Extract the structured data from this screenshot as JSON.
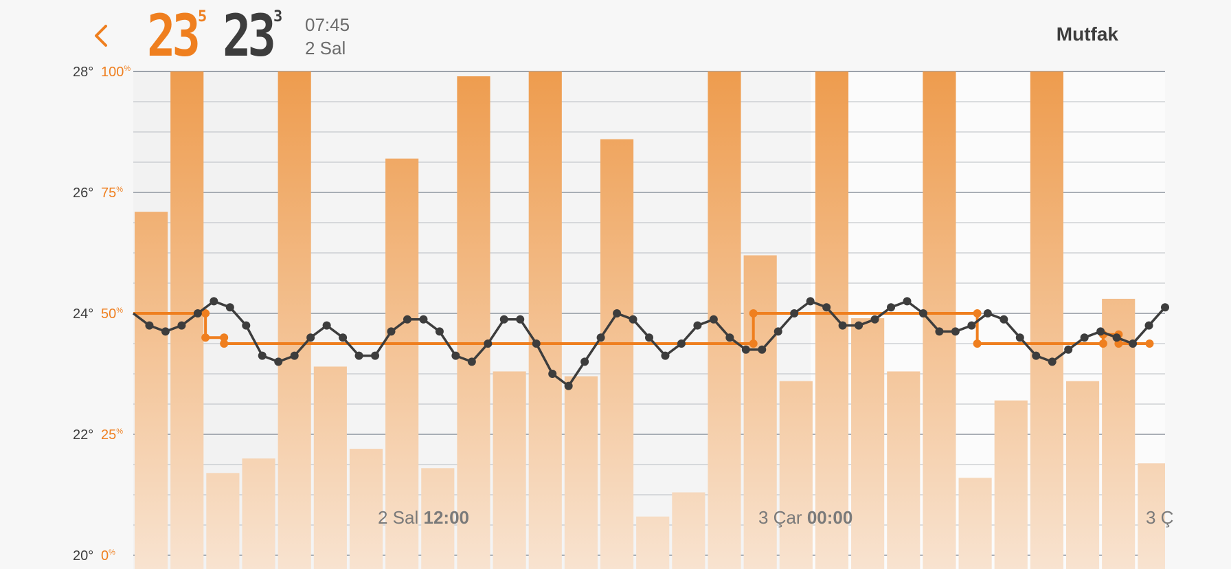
{
  "header": {
    "back_icon": "chevron-left-icon",
    "current_temp_int": "23",
    "current_temp_dec": "5",
    "target_temp_int": "23",
    "target_temp_dec": "3",
    "time": "07:45",
    "date": "2 Sal",
    "room_name": "Mutfak"
  },
  "colors": {
    "accent": "#ef7f1f",
    "dark": "#3d3d3d",
    "bar_top": "#ee9c4e",
    "bar_bottom": "#f8e3d0"
  },
  "chart_data": {
    "type": "bar+line",
    "temp_axis": {
      "ticks": [
        28,
        26,
        24,
        22,
        20
      ],
      "labels": [
        "28°",
        "26°",
        "24°",
        "22°",
        "20°"
      ],
      "ylim": [
        20,
        28
      ]
    },
    "humidity_axis": {
      "ticks": [
        100,
        75,
        50,
        25,
        0
      ],
      "labels": [
        "100",
        "75",
        "50",
        "25",
        "0"
      ],
      "unit": "%",
      "ylim": [
        0,
        100
      ]
    },
    "x_labels": [
      {
        "day": "2 Sal",
        "time": "12:00"
      },
      {
        "day": "3 Çar",
        "time": "00:00"
      },
      {
        "day": "3 Ç",
        "time": ""
      }
    ],
    "humidity_bars": [
      71,
      100,
      17,
      20,
      100,
      39,
      22,
      82,
      18,
      99,
      38,
      100,
      37,
      86,
      8,
      13,
      100,
      62,
      36,
      100,
      49,
      38,
      100,
      16,
      32,
      100,
      36,
      53,
      19
    ],
    "measured_temp": [
      24.0,
      23.8,
      23.7,
      23.8,
      24.0,
      24.2,
      24.1,
      23.8,
      23.3,
      23.2,
      23.3,
      23.6,
      23.8,
      23.6,
      23.3,
      23.3,
      23.7,
      23.9,
      23.9,
      23.7,
      23.3,
      23.2,
      23.5,
      23.9,
      23.9,
      23.5,
      23.0,
      22.8,
      23.2,
      23.6,
      24.0,
      23.9,
      23.6,
      23.3,
      23.5,
      23.8,
      23.9,
      23.6,
      23.4,
      23.4,
      23.7,
      24.0,
      24.2,
      24.1,
      23.8,
      23.8,
      23.9,
      24.1,
      24.2,
      24.0,
      23.7,
      23.7,
      23.8,
      24.0,
      23.9,
      23.6,
      23.3,
      23.2,
      23.4,
      23.6,
      23.7,
      23.6,
      23.5,
      23.8,
      24.1
    ],
    "setpoint_temp": [
      [
        0.0,
        24.0
      ],
      [
        0.07,
        24.0
      ],
      [
        0.07,
        23.6
      ],
      [
        0.088,
        23.6
      ],
      [
        0.088,
        23.5
      ],
      [
        0.601,
        23.5
      ],
      [
        0.601,
        24.0
      ],
      [
        0.818,
        24.0
      ],
      [
        0.818,
        23.5
      ],
      [
        0.94,
        23.5
      ],
      [
        0.94,
        23.65
      ],
      [
        0.955,
        23.65
      ],
      [
        0.955,
        23.5
      ],
      [
        0.985,
        23.5
      ]
    ],
    "setpoint_markers": [
      0.07,
      0.088,
      0.601,
      0.818,
      0.94,
      0.955,
      0.985
    ]
  }
}
